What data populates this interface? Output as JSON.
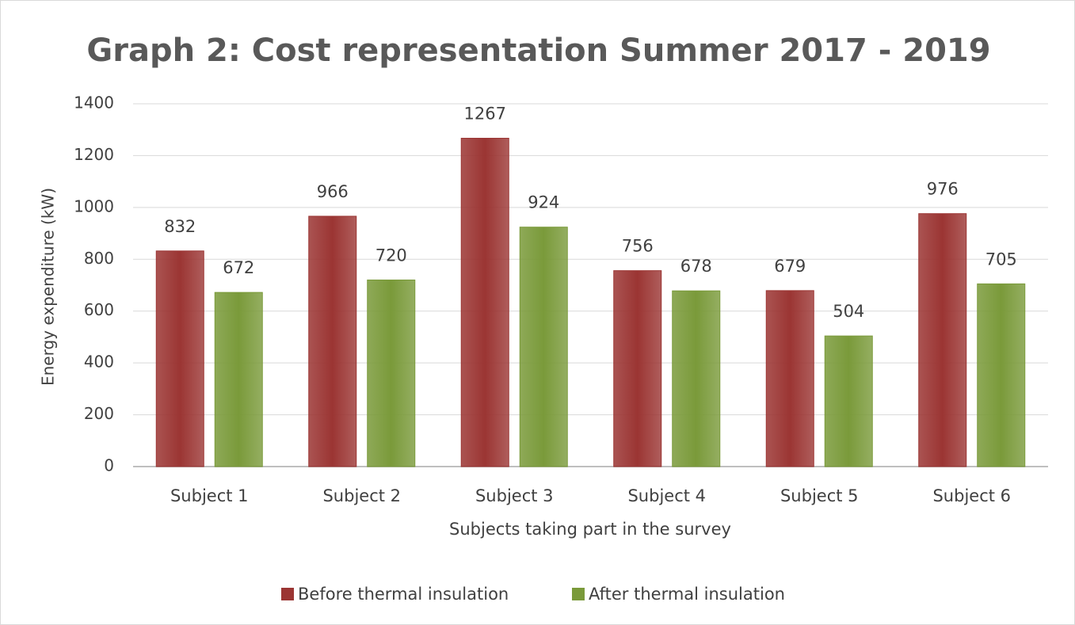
{
  "chart_data": {
    "type": "bar",
    "title": "Graph 2: Cost representation Summer 2017 - 2019",
    "x_label": "Subjects taking part in the survey",
    "y_label": "Energy expenditure (kW)",
    "categories": [
      "Subject 1",
      "Subject 2",
      "Subject 3",
      "Subject 4",
      "Subject 5",
      "Subject 6"
    ],
    "series": [
      {
        "name": "Before thermal insulation",
        "color": "#9b3533",
        "values": [
          832,
          966,
          1267,
          756,
          679,
          976
        ]
      },
      {
        "name": "After thermal insulation",
        "color": "#7a9a3a",
        "values": [
          672,
          720,
          924,
          678,
          504,
          705
        ]
      }
    ],
    "ylim": [
      0,
      1400
    ],
    "yticks": [
      0,
      200,
      400,
      600,
      800,
      1000,
      1200,
      1400
    ],
    "grid": true,
    "legend": "bottom",
    "data_labels": true
  }
}
